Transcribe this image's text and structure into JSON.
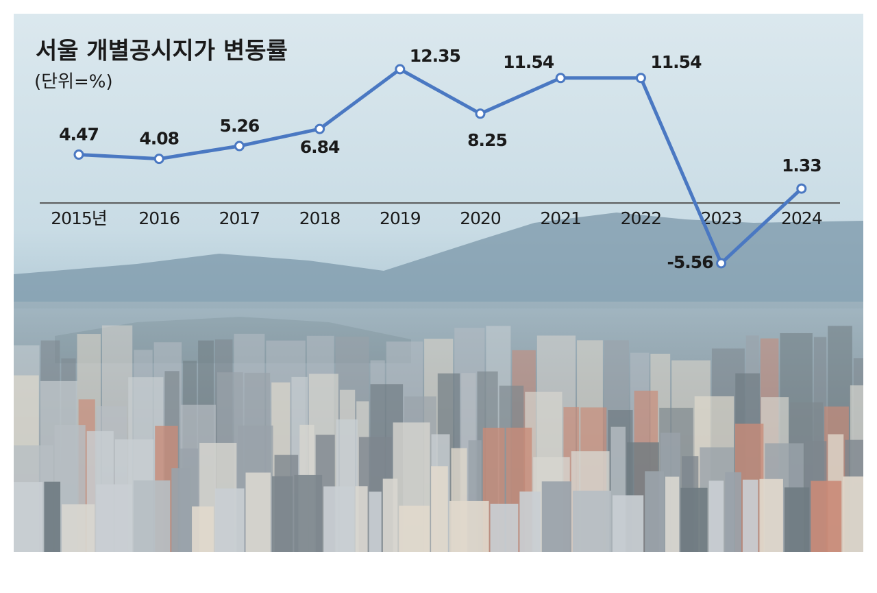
{
  "chart_data": {
    "type": "line",
    "title": "서울 개별공시지가 변동률",
    "subtitle": "(단위=%)",
    "categories": [
      "2015년",
      "2016",
      "2017",
      "2018",
      "2019",
      "2020",
      "2021",
      "2022",
      "2023",
      "2024"
    ],
    "series": [
      {
        "color": "#4a78c2",
        "values": [
          4.47,
          4.08,
          5.26,
          6.84,
          12.35,
          8.25,
          11.54,
          11.54,
          -5.56,
          1.33
        ]
      }
    ]
  }
}
